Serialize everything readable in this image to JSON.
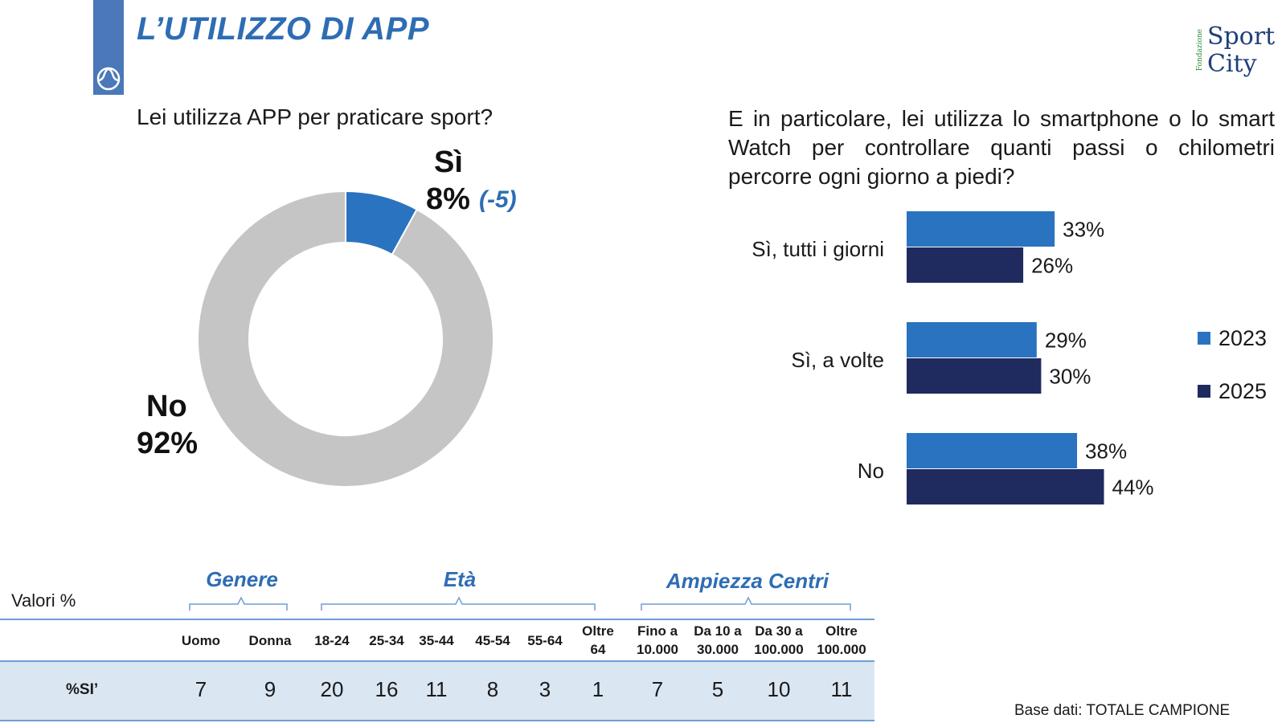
{
  "header": {
    "title": "L’UTILIZZO DI APP"
  },
  "logo": {
    "small_text": "Fondazione",
    "line1": "Sport",
    "line2": "City"
  },
  "left_question": "Lei utilizza APP per praticare sport?",
  "right_question": "E in particolare, lei utilizza lo smartphone o lo smart Watch per controllare quanti passi o chilometri percorre ogni giorno a piedi?",
  "pie_labels": {
    "si_name": "Sì",
    "si_value": "8%",
    "si_delta": "(-5)",
    "no_name": "No",
    "no_value": "92%"
  },
  "colors": {
    "blue_2023": "#2a73c0",
    "navy_2025": "#1f2a5e",
    "grey": "#c5c5c5",
    "accent": "#2e6db4"
  },
  "chart_data": [
    {
      "type": "pie",
      "title": "Lei utilizza APP per praticare sport?",
      "categories": [
        "Sì",
        "No"
      ],
      "values": [
        8,
        92
      ],
      "unit": "%",
      "annotations": [
        "(-5)"
      ],
      "donut": true
    },
    {
      "type": "bar",
      "orientation": "horizontal",
      "title": "E in particolare, lei utilizza lo smartphone o lo smart Watch per controllare quanti passi o chilometri percorre ogni giorno a piedi?",
      "categories": [
        "Sì, tutti i giorni",
        "Sì, a volte",
        "No"
      ],
      "series": [
        {
          "name": "2023",
          "values": [
            33,
            29,
            38
          ]
        },
        {
          "name": "2025",
          "values": [
            26,
            30,
            44
          ]
        }
      ],
      "unit": "%",
      "legend": "right"
    }
  ],
  "table": {
    "valori_label": "Valori %",
    "groups": [
      "Genere",
      "Età",
      "Ampiezza Centri"
    ],
    "columns": [
      [
        "Uomo"
      ],
      [
        "Donna"
      ],
      [
        "18-24"
      ],
      [
        "25-34"
      ],
      [
        "35-44"
      ],
      [
        "45-54"
      ],
      [
        "55-64"
      ],
      [
        "Oltre",
        "64"
      ],
      [
        "Fino a",
        "10.000"
      ],
      [
        "Da 10 a",
        "30.000"
      ],
      [
        "Da 30 a",
        "100.000"
      ],
      [
        "Oltre",
        "100.000"
      ]
    ],
    "row_label": "%SI’",
    "row_values": [
      "7",
      "9",
      "20",
      "16",
      "11",
      "8",
      "3",
      "1",
      "7",
      "5",
      "10",
      "11"
    ]
  },
  "footer": {
    "base_dati": "Base dati: TOTALE CAMPIONE"
  }
}
